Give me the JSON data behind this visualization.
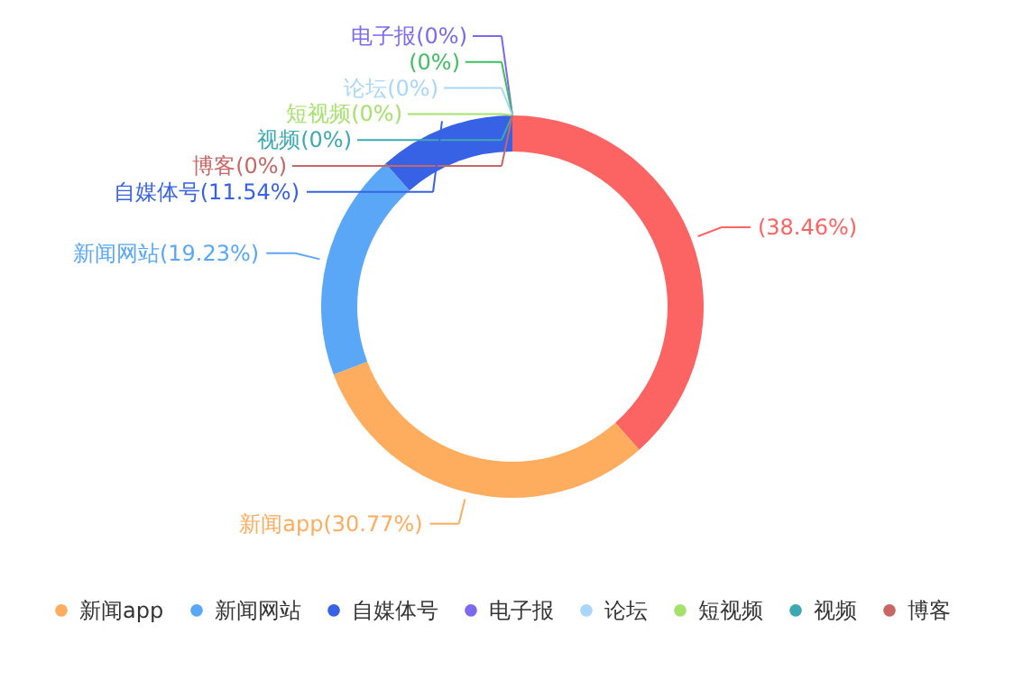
{
  "chart_data": {
    "type": "donut",
    "categories": [
      null,
      "新闻app",
      "新闻网站",
      "自媒体号",
      "电子报",
      null,
      "论坛",
      "短视频",
      "视频",
      "博客"
    ],
    "values": [
      38.46,
      30.77,
      19.23,
      11.54,
      0,
      0,
      0,
      0,
      0,
      0
    ],
    "colors": [
      "#fc6363",
      "#feac5e",
      "#5aa7f8",
      "#3862e6",
      "#7b6af0",
      "#3fbf5f",
      "#a9d6fb",
      "#a6e16c",
      "#3ca9b2",
      "#c86666"
    ],
    "value_labels": [
      "(38.46%)",
      "新闻app(30.77%)",
      "新闻网站(19.23%)",
      "自媒体号(11.54%)",
      "电子报(0%)",
      "(0%)",
      "论坛(0%)",
      "短视频(0%)",
      "视频(0%)",
      "博客(0%)"
    ],
    "legend": "bottom"
  }
}
